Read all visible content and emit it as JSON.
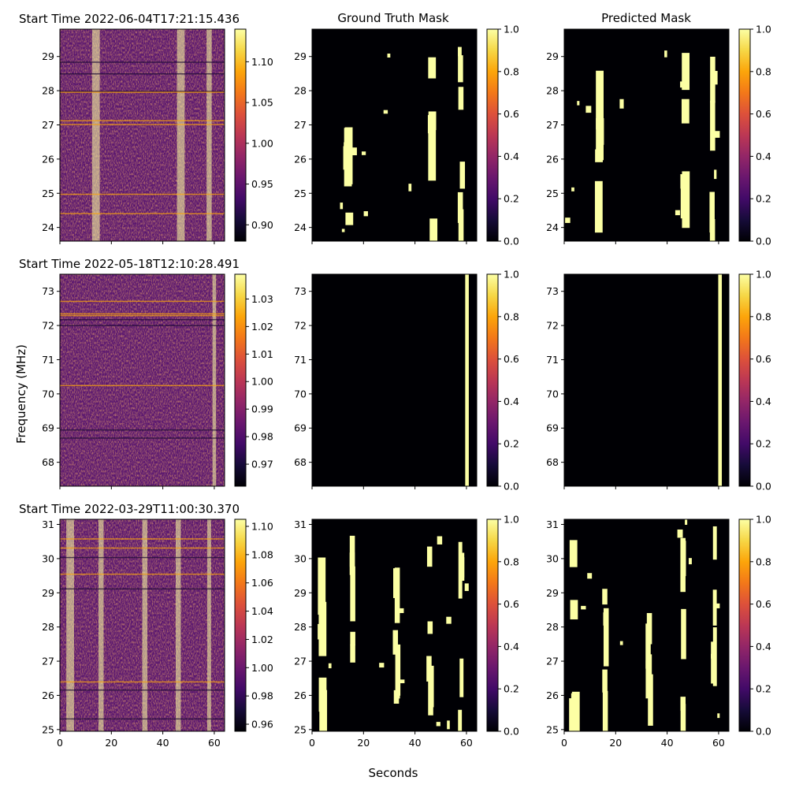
{
  "figure": {
    "ylabel": "Frequency (MHz)",
    "xlabel": "Seconds",
    "column_titles": [
      "",
      "Ground Truth Mask",
      "Predicted Mask"
    ]
  },
  "chart_data": [
    {
      "type": "heatmap",
      "title": "Start Time 2022-06-04T17:21:15.436",
      "panel": "spectrogram",
      "xlim": [
        0,
        64
      ],
      "ylim": [
        23.6,
        29.8
      ],
      "xticks": [
        0,
        20,
        40,
        60
      ],
      "yticks": [
        24,
        25,
        26,
        27,
        28,
        29
      ],
      "colorbar": {
        "colormap": "inferno",
        "range": [
          0.88,
          1.14
        ],
        "ticks": [
          "0.90",
          "0.95",
          "1.00",
          "1.05",
          "1.10"
        ]
      }
    },
    {
      "type": "heatmap",
      "title": "",
      "panel": "ground-truth-mask",
      "xlim": [
        0,
        64
      ],
      "ylim": [
        23.6,
        29.8
      ],
      "xticks": [
        0,
        20,
        40,
        60
      ],
      "yticks": [
        24,
        25,
        26,
        27,
        28,
        29
      ],
      "colorbar": {
        "colormap": "inferno",
        "range": [
          0,
          1
        ],
        "ticks": [
          "0.0",
          "0.2",
          "0.4",
          "0.6",
          "0.8",
          "1.0"
        ]
      }
    },
    {
      "type": "heatmap",
      "title": "",
      "panel": "predicted-mask",
      "xlim": [
        0,
        64
      ],
      "ylim": [
        23.6,
        29.8
      ],
      "xticks": [
        0,
        20,
        40,
        60
      ],
      "yticks": [
        24,
        25,
        26,
        27,
        28,
        29
      ],
      "colorbar": {
        "colormap": "inferno",
        "range": [
          0,
          1
        ],
        "ticks": [
          "0.0",
          "0.2",
          "0.4",
          "0.6",
          "0.8",
          "1.0"
        ]
      }
    },
    {
      "type": "heatmap",
      "title": "Start Time 2022-05-18T12:10:28.491",
      "panel": "spectrogram",
      "xlim": [
        0,
        64
      ],
      "ylim": [
        67.3,
        73.5
      ],
      "xticks": [
        0,
        20,
        40,
        60
      ],
      "yticks": [
        68,
        69,
        70,
        71,
        72,
        73
      ],
      "colorbar": {
        "colormap": "inferno",
        "range": [
          0.962,
          1.039
        ],
        "ticks": [
          "0.97",
          "0.98",
          "0.99",
          "1.00",
          "1.01",
          "1.02",
          "1.03"
        ]
      }
    },
    {
      "type": "heatmap",
      "title": "",
      "panel": "ground-truth-mask",
      "xlim": [
        0,
        64
      ],
      "ylim": [
        67.3,
        73.5
      ],
      "xticks": [
        0,
        20,
        40,
        60
      ],
      "yticks": [
        68,
        69,
        70,
        71,
        72,
        73
      ],
      "colorbar": {
        "colormap": "inferno",
        "range": [
          0,
          1
        ],
        "ticks": [
          "0.0",
          "0.2",
          "0.4",
          "0.6",
          "0.8",
          "1.0"
        ]
      }
    },
    {
      "type": "heatmap",
      "title": "",
      "panel": "predicted-mask",
      "xlim": [
        0,
        64
      ],
      "ylim": [
        67.3,
        73.5
      ],
      "xticks": [
        0,
        20,
        40,
        60
      ],
      "yticks": [
        68,
        69,
        70,
        71,
        72,
        73
      ],
      "colorbar": {
        "colormap": "inferno",
        "range": [
          0,
          1
        ],
        "ticks": [
          "0.0",
          "0.2",
          "0.4",
          "0.6",
          "0.8",
          "1.0"
        ]
      }
    },
    {
      "type": "heatmap",
      "title": "Start Time 2022-03-29T11:00:30.370",
      "panel": "spectrogram",
      "xlim": [
        0,
        64
      ],
      "ylim": [
        24.95,
        31.15
      ],
      "xticks": [
        0,
        20,
        40,
        60
      ],
      "yticks": [
        25,
        26,
        27,
        28,
        29,
        30,
        31
      ],
      "colorbar": {
        "colormap": "inferno",
        "range": [
          0.955,
          1.105
        ],
        "ticks": [
          "0.96",
          "0.98",
          "1.00",
          "1.02",
          "1.04",
          "1.06",
          "1.08",
          "1.10"
        ]
      }
    },
    {
      "type": "heatmap",
      "title": "",
      "panel": "ground-truth-mask",
      "xlim": [
        0,
        64
      ],
      "ylim": [
        24.95,
        31.15
      ],
      "xticks": [
        0,
        20,
        40,
        60
      ],
      "yticks": [
        25,
        26,
        27,
        28,
        29,
        30,
        31
      ],
      "colorbar": {
        "colormap": "inferno",
        "range": [
          0,
          1
        ],
        "ticks": [
          "0.0",
          "0.2",
          "0.4",
          "0.6",
          "0.8",
          "1.0"
        ]
      }
    },
    {
      "type": "heatmap",
      "title": "",
      "panel": "predicted-mask",
      "xlim": [
        0,
        64
      ],
      "ylim": [
        24.95,
        31.15
      ],
      "xticks": [
        0,
        20,
        40,
        60
      ],
      "yticks": [
        25,
        26,
        27,
        28,
        29,
        30,
        31
      ],
      "colorbar": {
        "colormap": "inferno",
        "range": [
          0,
          1
        ],
        "ticks": [
          "0.0",
          "0.2",
          "0.4",
          "0.6",
          "0.8",
          "1.0"
        ]
      }
    }
  ]
}
